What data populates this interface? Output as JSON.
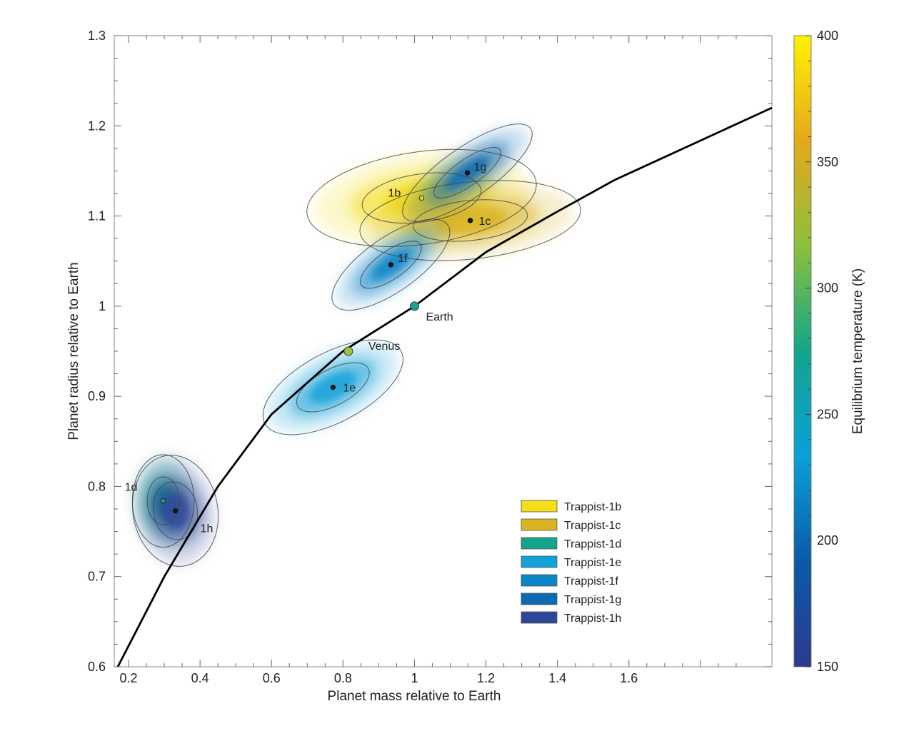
{
  "chart_data": {
    "type": "scatter",
    "xlabel": "Planet mass relative to Earth",
    "ylabel": "Planet radius relative to Earth",
    "xlim": [
      0.16,
      2.0
    ],
    "ylim": [
      0.6,
      1.3
    ],
    "x_ticks": [
      "0.2",
      "0.4",
      "0.6",
      "0.8",
      "1",
      "1.2",
      "1.4",
      "1.6"
    ],
    "x_tick_values": [
      0.2,
      0.4,
      0.6,
      0.8,
      1.0,
      1.2,
      1.4,
      1.6
    ],
    "y_ticks": [
      "0.6",
      "0.7",
      "0.8",
      "0.9",
      "1",
      "1.1",
      "1.2",
      "1.3"
    ],
    "y_tick_values": [
      0.6,
      0.7,
      0.8,
      0.9,
      1.0,
      1.1,
      1.2,
      1.3
    ],
    "grid": false,
    "legend_position": "bottom-right",
    "colorbar": {
      "label": "Equilibrium temperature (K)",
      "range": [
        150,
        400
      ],
      "ticks": [
        "150",
        "200",
        "250",
        "300",
        "350",
        "400"
      ],
      "tick_values": [
        150,
        200,
        250,
        300,
        350,
        400
      ],
      "colors": [
        "#2e3a8f",
        "#0a5aa8",
        "#0aa0d8",
        "#12a58a",
        "#8cc03c",
        "#e5a81c",
        "#fff200"
      ]
    },
    "mass_radius_curve": {
      "x": [
        0.17,
        0.3,
        0.45,
        0.6,
        0.8,
        1.0,
        1.2,
        1.4,
        1.56,
        2.0
      ],
      "y": [
        0.6,
        0.7,
        0.8,
        0.88,
        0.95,
        1.0,
        1.06,
        1.105,
        1.14,
        1.22
      ]
    },
    "series": [
      {
        "name": "Trappist-1b",
        "point_label": "1b",
        "mass": 1.02,
        "radius": 1.12,
        "color": "#f4de1a",
        "dot_color": "#e8d21a"
      },
      {
        "name": "Trappist-1c",
        "point_label": "1c",
        "mass": 1.156,
        "radius": 1.095,
        "color": "#d9b420",
        "dot_color": "#111111"
      },
      {
        "name": "Trappist-1d",
        "point_label": "1d",
        "mass": 0.297,
        "radius": 0.784,
        "color": "#13a48a",
        "dot_color": "#13a48a"
      },
      {
        "name": "Trappist-1e",
        "point_label": "1e",
        "mass": 0.772,
        "radius": 0.91,
        "color": "#12a2d8",
        "dot_color": "#111111"
      },
      {
        "name": "Trappist-1f",
        "point_label": "1f",
        "mass": 0.934,
        "radius": 1.046,
        "color": "#0b84c8",
        "dot_color": "#111111"
      },
      {
        "name": "Trappist-1g",
        "point_label": "1g",
        "mass": 1.148,
        "radius": 1.148,
        "color": "#0b6ab4",
        "dot_color": "#111111"
      },
      {
        "name": "Trappist-1h",
        "point_label": "1h",
        "mass": 0.331,
        "radius": 0.773,
        "color": "#2e4696",
        "dot_color": "#111111"
      }
    ],
    "reference_points": [
      {
        "name": "Earth",
        "mass": 1.0,
        "radius": 1.0,
        "color": "#17a49a"
      },
      {
        "name": "Venus",
        "mass": 0.815,
        "radius": 0.95,
        "color": "#9ec53a"
      }
    ]
  }
}
